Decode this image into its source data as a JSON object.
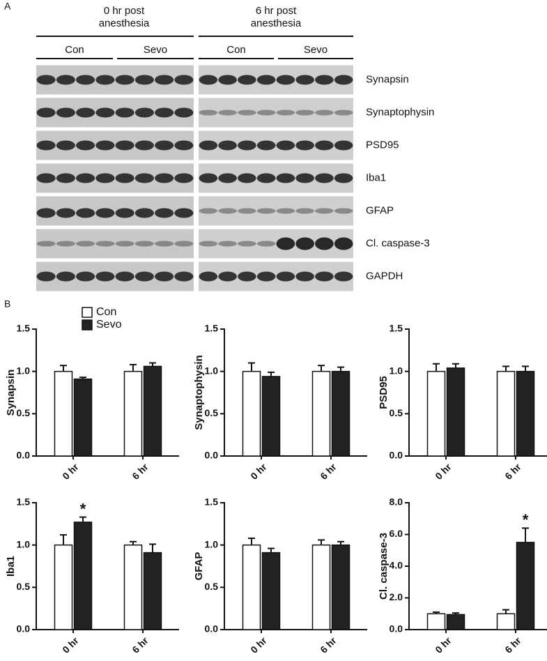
{
  "panel_a": {
    "label": "A",
    "groups": [
      {
        "title": "0 hr post anesthesia",
        "subgroups": [
          "Con",
          "Sevo"
        ]
      },
      {
        "title": "6 hr post anesthesia",
        "subgroups": [
          "Con",
          "Sevo"
        ]
      }
    ],
    "proteins": [
      "Synapsin",
      "Synaptophysin",
      "PSD95",
      "Iba1",
      "GFAP",
      "Cl. caspase-3",
      "GAPDH"
    ]
  },
  "panel_b": {
    "label": "B"
  },
  "chart_data": [
    {
      "type": "bar",
      "ylabel": "Synapsin",
      "categories": [
        "0 hr",
        "6 hr"
      ],
      "legend": "top-left",
      "series": [
        {
          "name": "Con",
          "color": "#ffffff",
          "values": [
            1.0,
            1.0
          ],
          "errors": [
            0.07,
            0.08
          ]
        },
        {
          "name": "Sevo",
          "color": "#222222",
          "values": [
            0.91,
            1.06
          ],
          "errors": [
            0.02,
            0.04
          ]
        }
      ],
      "ylim": [
        0,
        1.5
      ],
      "yticks": [
        {
          "value": 0,
          "label": "0.0"
        },
        {
          "value": 0.5,
          "label": "0.5"
        },
        {
          "value": 1,
          "label": "1.0"
        },
        {
          "value": 1.5,
          "label": "1.5"
        }
      ]
    },
    {
      "type": "bar",
      "ylabel": "Synaptophysin",
      "categories": [
        "0 hr",
        "6 hr"
      ],
      "series": [
        {
          "name": "Con",
          "color": "#ffffff",
          "values": [
            1.0,
            1.0
          ],
          "errors": [
            0.1,
            0.07
          ]
        },
        {
          "name": "Sevo",
          "color": "#222222",
          "values": [
            0.94,
            1.0
          ],
          "errors": [
            0.05,
            0.05
          ]
        }
      ],
      "ylim": [
        0,
        1.5
      ],
      "yticks": [
        {
          "value": 0,
          "label": "0.0"
        },
        {
          "value": 0.5,
          "label": "0.5"
        },
        {
          "value": 1,
          "label": "1.0"
        },
        {
          "value": 1.5,
          "label": "1.5"
        }
      ]
    },
    {
      "type": "bar",
      "ylabel": "PSD95",
      "categories": [
        "0 hr",
        "6 hr"
      ],
      "series": [
        {
          "name": "Con",
          "color": "#ffffff",
          "values": [
            1.0,
            1.0
          ],
          "errors": [
            0.09,
            0.06
          ]
        },
        {
          "name": "Sevo",
          "color": "#222222",
          "values": [
            1.04,
            1.0
          ],
          "errors": [
            0.05,
            0.06
          ]
        }
      ],
      "ylim": [
        0,
        1.5
      ],
      "yticks": [
        {
          "value": 0,
          "label": "0.0"
        },
        {
          "value": 0.5,
          "label": "0.5"
        },
        {
          "value": 1,
          "label": "1.0"
        },
        {
          "value": 1.5,
          "label": "1.5"
        }
      ]
    },
    {
      "type": "bar",
      "ylabel": "Iba1",
      "categories": [
        "0 hr",
        "6 hr"
      ],
      "series": [
        {
          "name": "Con",
          "color": "#ffffff",
          "values": [
            1.0,
            1.0
          ],
          "errors": [
            0.12,
            0.04
          ]
        },
        {
          "name": "Sevo",
          "color": "#222222",
          "values": [
            1.27,
            0.91
          ],
          "errors": [
            0.06,
            0.1
          ]
        }
      ],
      "annotations": [
        {
          "text": "*",
          "category": "0 hr",
          "series": "Sevo"
        }
      ],
      "ylim": [
        0,
        1.5
      ],
      "yticks": [
        {
          "value": 0,
          "label": "0.0"
        },
        {
          "value": 0.5,
          "label": "0.5"
        },
        {
          "value": 1,
          "label": "1.0"
        },
        {
          "value": 1.5,
          "label": "1.5"
        }
      ]
    },
    {
      "type": "bar",
      "ylabel": "GFAP",
      "categories": [
        "0 hr",
        "6 hr"
      ],
      "series": [
        {
          "name": "Con",
          "color": "#ffffff",
          "values": [
            1.0,
            1.0
          ],
          "errors": [
            0.08,
            0.06
          ]
        },
        {
          "name": "Sevo",
          "color": "#222222",
          "values": [
            0.91,
            1.0
          ],
          "errors": [
            0.05,
            0.04
          ]
        }
      ],
      "ylim": [
        0,
        1.5
      ],
      "yticks": [
        {
          "value": 0,
          "label": "0.0"
        },
        {
          "value": 0.5,
          "label": "0.5"
        },
        {
          "value": 1,
          "label": "1.0"
        },
        {
          "value": 1.5,
          "label": "1.5"
        }
      ]
    },
    {
      "type": "bar",
      "ylabel": "Cl. caspase-3",
      "categories": [
        "0 hr",
        "6 hr"
      ],
      "series": [
        {
          "name": "Con",
          "color": "#ffffff",
          "values": [
            1.0,
            1.0
          ],
          "errors": [
            0.1,
            0.25
          ]
        },
        {
          "name": "Sevo",
          "color": "#222222",
          "values": [
            0.95,
            5.5
          ],
          "errors": [
            0.1,
            0.9
          ]
        }
      ],
      "annotations": [
        {
          "text": "*",
          "category": "6 hr",
          "series": "Sevo"
        }
      ],
      "ylim": [
        0,
        8
      ],
      "yticks": [
        {
          "value": 0,
          "label": "0.0"
        },
        {
          "value": 2,
          "label": "2.0"
        },
        {
          "value": 4,
          "label": "4.0"
        },
        {
          "value": 6,
          "label": "6.0"
        },
        {
          "value": 8,
          "label": "8.0"
        }
      ]
    }
  ]
}
